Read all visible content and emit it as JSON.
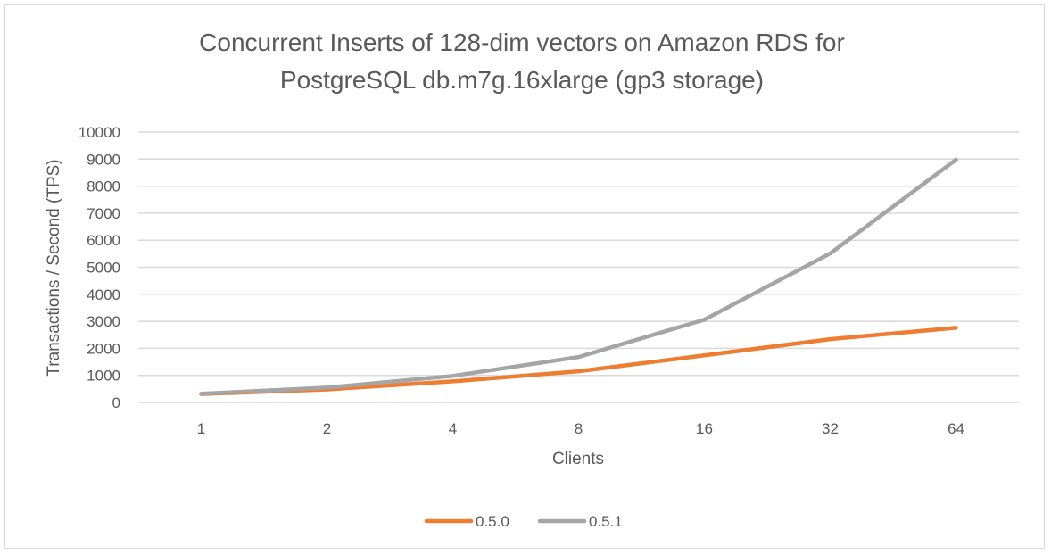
{
  "chart_data": {
    "type": "line",
    "title_lines": [
      "Concurrent Inserts of 128-dim vectors on Amazon RDS for",
      "PostgreSQL db.m7g.16xlarge (gp3 storage)"
    ],
    "xlabel": "Clients",
    "ylabel": "Transactions / Second (TPS)",
    "categories": [
      "1",
      "2",
      "4",
      "8",
      "16",
      "32",
      "64"
    ],
    "ylim": [
      0,
      10000
    ],
    "yticks": [
      0,
      1000,
      2000,
      3000,
      4000,
      5000,
      6000,
      7000,
      8000,
      9000,
      10000
    ],
    "grid": true,
    "legend_position": "bottom",
    "series": [
      {
        "name": "0.5.0",
        "color": "#ed7d31",
        "values": [
          310,
          480,
          780,
          1150,
          1740,
          2340,
          2760
        ]
      },
      {
        "name": "0.5.1",
        "color": "#a5a5a5",
        "values": [
          320,
          550,
          980,
          1680,
          3060,
          5510,
          8980
        ]
      }
    ]
  }
}
